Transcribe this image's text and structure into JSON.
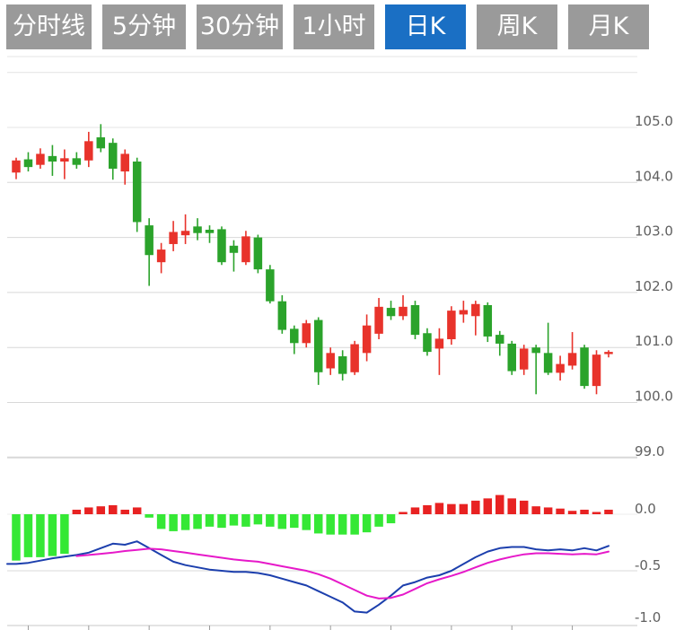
{
  "tabs": [
    {
      "label": "分时线",
      "active": false
    },
    {
      "label": "5分钟",
      "active": false
    },
    {
      "label": "30分钟",
      "active": false
    },
    {
      "label": "1小时",
      "active": false
    },
    {
      "label": "日K",
      "active": true
    },
    {
      "label": "周K",
      "active": false
    },
    {
      "label": "月K",
      "active": false
    }
  ],
  "colors": {
    "tab_bg": "#9a9a9a",
    "tab_active_bg": "#1a6fc4",
    "tab_text": "#ffffff",
    "candle_up": "#e8332b",
    "candle_down": "#2ba32b",
    "macd_bar_up": "#e82222",
    "macd_bar_down": "#35e835",
    "dif_line": "#1c3fad",
    "dea_line": "#e619c9",
    "grid": "#d8d8d8",
    "grid_light": "#e4e4e4",
    "axis_label": "#606060"
  },
  "chart_data": {
    "type": "candlestick",
    "panels": [
      {
        "name": "price",
        "y_tick_labels": [
          "105.0",
          "104.0",
          "103.0",
          "102.0",
          "101.0",
          "100.0",
          "99.0"
        ],
        "y_ticks": [
          105.0,
          104.0,
          103.0,
          102.0,
          101.0,
          100.0,
          99.0
        ],
        "y_grid": [
          106.0,
          105.0,
          104.0,
          103.0,
          102.0,
          101.0,
          100.0,
          99.0
        ],
        "ylim": [
          98.8,
          106.3
        ],
        "grid": true,
        "candles_ohlc": [
          [
            104.18,
            104.45,
            104.06,
            104.4
          ],
          [
            104.42,
            104.55,
            104.2,
            104.28
          ],
          [
            104.32,
            104.62,
            104.25,
            104.52
          ],
          [
            104.48,
            104.68,
            104.12,
            104.38
          ],
          [
            104.38,
            104.6,
            104.06,
            104.44
          ],
          [
            104.44,
            104.55,
            104.25,
            104.32
          ],
          [
            104.4,
            104.92,
            104.28,
            104.75
          ],
          [
            104.82,
            105.06,
            104.55,
            104.62
          ],
          [
            104.72,
            104.8,
            104.05,
            104.25
          ],
          [
            104.2,
            104.6,
            103.96,
            104.52
          ],
          [
            104.38,
            104.45,
            103.1,
            103.28
          ],
          [
            103.22,
            103.35,
            102.12,
            102.68
          ],
          [
            102.55,
            102.9,
            102.35,
            102.78
          ],
          [
            102.88,
            103.3,
            102.75,
            103.1
          ],
          [
            103.04,
            103.42,
            102.88,
            103.12
          ],
          [
            103.2,
            103.35,
            102.95,
            103.08
          ],
          [
            103.14,
            103.22,
            102.9,
            103.08
          ],
          [
            103.15,
            103.2,
            102.5,
            102.55
          ],
          [
            102.85,
            102.95,
            102.38,
            102.72
          ],
          [
            102.55,
            103.12,
            102.5,
            103.02
          ],
          [
            103.0,
            103.05,
            102.35,
            102.42
          ],
          [
            102.42,
            102.5,
            101.8,
            101.84
          ],
          [
            101.84,
            101.95,
            101.25,
            101.32
          ],
          [
            101.34,
            101.4,
            100.88,
            101.08
          ],
          [
            101.08,
            101.5,
            101.0,
            101.44
          ],
          [
            101.5,
            101.55,
            100.32,
            100.55
          ],
          [
            100.62,
            101.0,
            100.5,
            100.9
          ],
          [
            100.84,
            100.95,
            100.4,
            100.52
          ],
          [
            100.55,
            101.12,
            100.5,
            101.06
          ],
          [
            100.9,
            101.6,
            100.75,
            101.4
          ],
          [
            101.25,
            101.9,
            101.15,
            101.74
          ],
          [
            101.72,
            101.85,
            101.5,
            101.57
          ],
          [
            101.57,
            101.95,
            101.5,
            101.74
          ],
          [
            101.77,
            101.85,
            101.15,
            101.23
          ],
          [
            101.26,
            101.35,
            100.85,
            100.92
          ],
          [
            100.98,
            101.35,
            100.5,
            101.16
          ],
          [
            101.15,
            101.75,
            101.05,
            101.67
          ],
          [
            101.6,
            101.85,
            101.45,
            101.68
          ],
          [
            101.57,
            101.85,
            101.22,
            101.79
          ],
          [
            101.77,
            101.82,
            101.1,
            101.2
          ],
          [
            101.23,
            101.3,
            100.85,
            101.07
          ],
          [
            101.07,
            101.12,
            100.5,
            100.57
          ],
          [
            100.6,
            101.05,
            100.5,
            100.98
          ],
          [
            101.0,
            101.05,
            100.15,
            100.9
          ],
          [
            100.9,
            101.45,
            100.5,
            100.54
          ],
          [
            100.54,
            100.85,
            100.4,
            100.7
          ],
          [
            100.67,
            101.28,
            100.6,
            100.9
          ],
          [
            101.0,
            101.05,
            100.25,
            100.3
          ],
          [
            100.3,
            100.95,
            100.15,
            100.87
          ],
          [
            100.88,
            100.95,
            100.82,
            100.92
          ]
        ]
      },
      {
        "name": "macd",
        "y_tick_labels": [
          "0.0",
          "-0.5",
          "-1.0"
        ],
        "y_ticks": [
          0.0,
          -0.5,
          -1.0
        ],
        "ylim": [
          -1.0,
          0.3
        ],
        "grid": true,
        "histogram": [
          -0.41,
          -0.38,
          -0.38,
          -0.37,
          -0.35,
          0.04,
          0.06,
          0.07,
          0.08,
          0.04,
          0.06,
          -0.03,
          -0.13,
          -0.15,
          -0.14,
          -0.13,
          -0.11,
          -0.12,
          -0.1,
          -0.11,
          -0.09,
          -0.11,
          -0.13,
          -0.12,
          -0.14,
          -0.17,
          -0.18,
          -0.18,
          -0.18,
          -0.16,
          -0.11,
          -0.08,
          0.02,
          0.06,
          0.08,
          0.1,
          0.09,
          0.09,
          0.12,
          0.14,
          0.17,
          0.14,
          0.12,
          0.07,
          0.06,
          0.05,
          0.03,
          0.04,
          0.02,
          0.04
        ],
        "series": [
          {
            "name": "DIF",
            "color": "#1c3fad",
            "values": [
              -0.44,
              -0.43,
              -0.41,
              -0.39,
              -0.375,
              -0.36,
              -0.34,
              -0.3,
              -0.26,
              -0.27,
              -0.24,
              -0.3,
              -0.36,
              -0.42,
              -0.45,
              -0.47,
              -0.49,
              -0.5,
              -0.51,
              -0.51,
              -0.52,
              -0.54,
              -0.57,
              -0.6,
              -0.63,
              -0.68,
              -0.73,
              -0.78,
              -0.86,
              -0.87,
              -0.8,
              -0.72,
              -0.63,
              -0.6,
              -0.56,
              -0.54,
              -0.5,
              -0.44,
              -0.38,
              -0.33,
              -0.3,
              -0.29,
              -0.29,
              -0.31,
              -0.32,
              -0.31,
              -0.32,
              -0.3,
              -0.32,
              -0.28
            ]
          },
          {
            "name": "DEA",
            "color": "#e619c9",
            "values": [
              null,
              null,
              null,
              null,
              null,
              -0.37,
              -0.36,
              -0.35,
              -0.34,
              -0.325,
              -0.315,
              -0.305,
              -0.31,
              -0.325,
              -0.34,
              -0.355,
              -0.37,
              -0.385,
              -0.4,
              -0.41,
              -0.42,
              -0.44,
              -0.46,
              -0.48,
              -0.5,
              -0.53,
              -0.57,
              -0.62,
              -0.67,
              -0.72,
              -0.745,
              -0.74,
              -0.71,
              -0.66,
              -0.61,
              -0.575,
              -0.545,
              -0.51,
              -0.47,
              -0.43,
              -0.4,
              -0.375,
              -0.355,
              -0.345,
              -0.345,
              -0.35,
              -0.355,
              -0.35,
              -0.355,
              -0.33
            ]
          }
        ]
      }
    ]
  }
}
